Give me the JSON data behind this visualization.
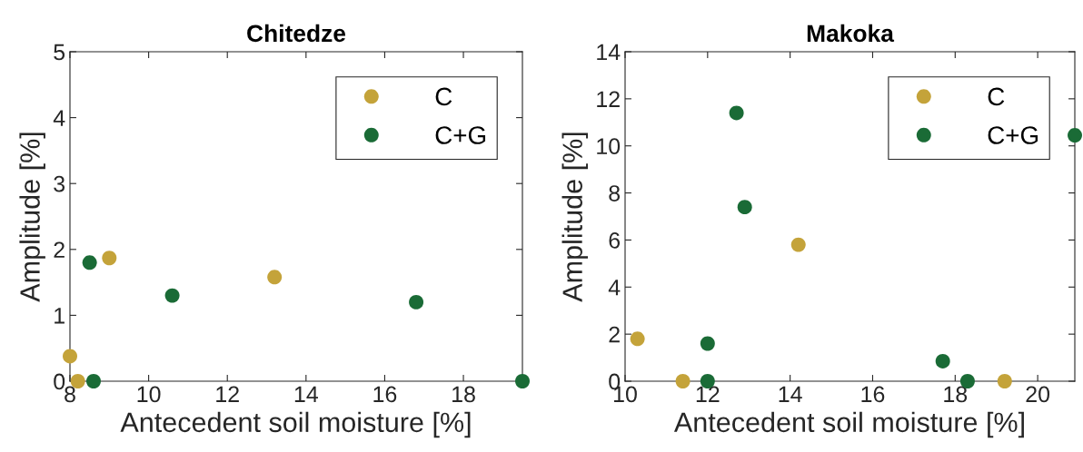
{
  "chart_data": [
    {
      "type": "scatter",
      "title": "Chitedze",
      "xlabel": "Antecedent soil moisture [%]",
      "ylabel": "Amplitude [%]",
      "xlim": [
        8,
        19.5
      ],
      "xticks": [
        8,
        10,
        12,
        14,
        16,
        18
      ],
      "ylim": [
        0,
        5
      ],
      "yticks": [
        0,
        1,
        2,
        3,
        4,
        5
      ],
      "grid": false,
      "legend": "top right",
      "marker": "circle",
      "series": [
        {
          "name": "C",
          "color": "#c4a33a",
          "x": [
            8.0,
            8.2,
            9.0,
            13.2
          ],
          "values": [
            0.38,
            0,
            1.87,
            1.58
          ]
        },
        {
          "name": "C+G",
          "color": "#1a6b36",
          "x": [
            8.5,
            8.6,
            10.6,
            16.8,
            19.5
          ],
          "values": [
            1.8,
            0,
            1.3,
            1.2,
            0
          ]
        }
      ]
    },
    {
      "type": "scatter",
      "title": "Makoka",
      "xlabel": "Antecedent soil moisture [%]",
      "ylabel": "Amplitude [%]",
      "xlim": [
        10,
        20.9
      ],
      "xticks": [
        10,
        12,
        14,
        16,
        18,
        20
      ],
      "ylim": [
        0,
        14
      ],
      "yticks": [
        0,
        2,
        4,
        6,
        8,
        10,
        12,
        14
      ],
      "grid": false,
      "legend": "top right",
      "marker": "circle",
      "series": [
        {
          "name": "C",
          "color": "#c4a33a",
          "x": [
            10.3,
            11.4,
            14.2,
            19.2
          ],
          "values": [
            1.8,
            0,
            5.8,
            0
          ]
        },
        {
          "name": "C+G",
          "color": "#1a6b36",
          "x": [
            12.7,
            12.9,
            12.0,
            12.0,
            17.7,
            18.3,
            20.9
          ],
          "values": [
            11.4,
            7.4,
            1.6,
            0,
            0.85,
            0,
            10.45
          ]
        }
      ]
    }
  ]
}
